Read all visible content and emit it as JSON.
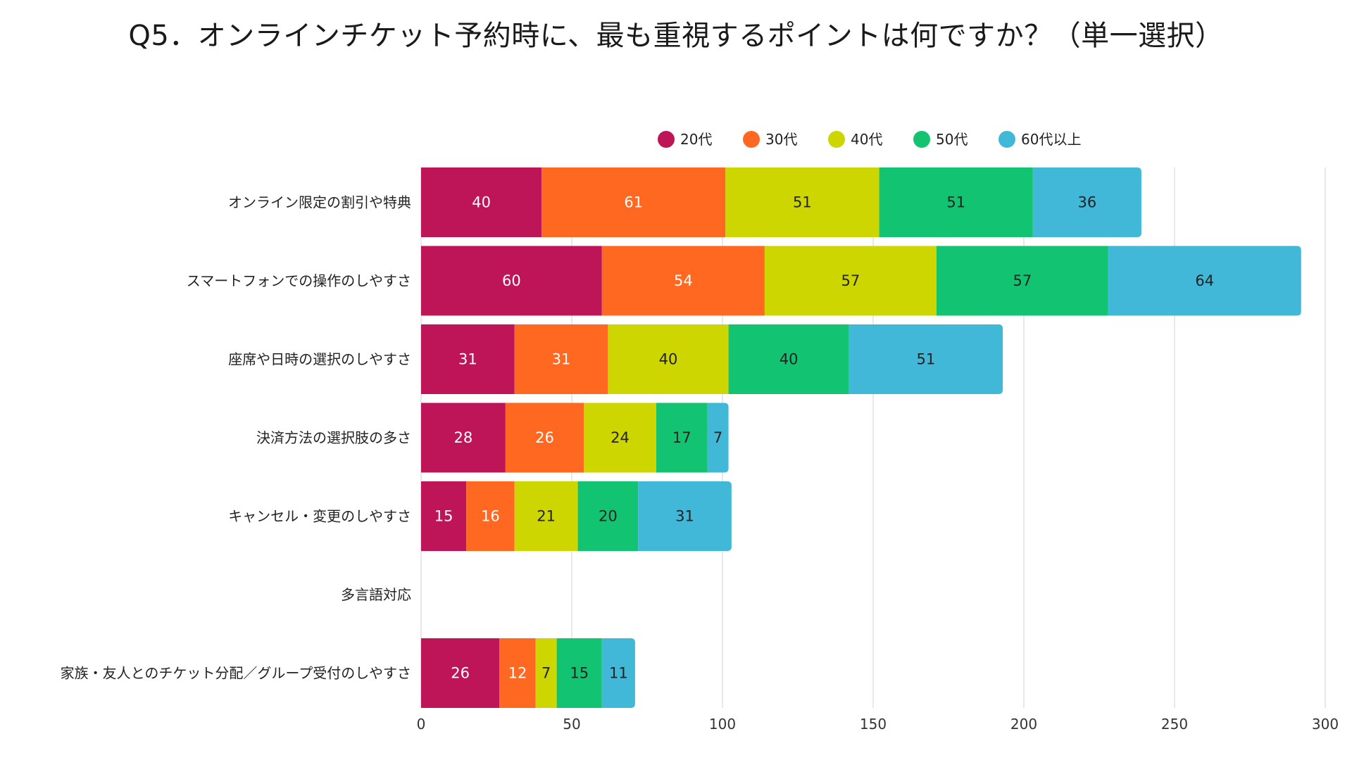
{
  "chart_data": {
    "type": "bar",
    "orientation": "horizontal",
    "stacked": true,
    "title": "Q5．オンラインチケット予約時に、最も重視するポイントは何ですか？（単一選択）",
    "xlabel": "",
    "ylabel": "",
    "xlim": [
      0,
      300
    ],
    "x_ticks": [
      0,
      50,
      100,
      150,
      200,
      250,
      300
    ],
    "grid": true,
    "legend_position": "top-right",
    "categories": [
      "オンライン限定の割引や特典",
      "スマートフォンでの操作のしやすさ",
      "座席や日時の選択のしやすさ",
      "決済方法の選択肢の多さ",
      "キャンセル・変更のしやすさ",
      "多言語対応",
      "家族・友人とのチケット分配／グループ受付のしやすさ"
    ],
    "series": [
      {
        "name": "20代",
        "color": "#BE1558",
        "label_color": "#ffffff",
        "values": [
          40,
          60,
          31,
          28,
          15,
          0,
          26
        ]
      },
      {
        "name": "30代",
        "color": "#FF6820",
        "label_color": "#ffffff",
        "values": [
          61,
          54,
          31,
          26,
          16,
          0,
          12
        ]
      },
      {
        "name": "40代",
        "color": "#CDD600",
        "label_color": "#222222",
        "values": [
          51,
          57,
          40,
          24,
          21,
          0,
          7
        ]
      },
      {
        "name": "50代",
        "color": "#12C472",
        "label_color": "#222222",
        "values": [
          51,
          57,
          40,
          17,
          20,
          0,
          15
        ]
      },
      {
        "name": "60代以上",
        "color": "#42B8D8",
        "label_color": "#222222",
        "values": [
          36,
          64,
          51,
          7,
          31,
          0,
          11
        ]
      }
    ]
  }
}
